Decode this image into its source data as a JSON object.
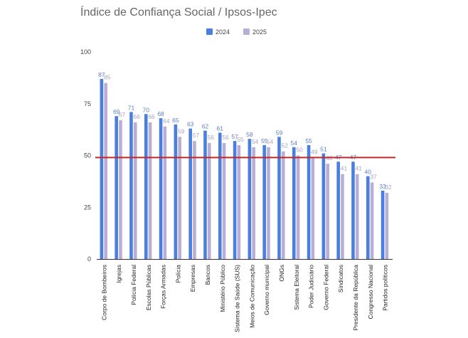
{
  "chart_data": {
    "type": "bar",
    "title": "Índice de Confiança Social / Ipsos-Ipec",
    "xlabel": "",
    "ylabel": "",
    "ylim": [
      0,
      100
    ],
    "yticks": [
      0,
      25,
      50,
      75,
      100
    ],
    "grid": false,
    "legend_position": "top-center",
    "reference_line": {
      "value": 49,
      "color": "#c0272d"
    },
    "categories": [
      "Corpo de Bombeiros",
      "Igrejas",
      "Polícia Federal",
      "Escolas Públicas",
      "Forças Armadas",
      "Polícia",
      "Empresas",
      "Bancos",
      "Ministério Público",
      "Sistema de Saúde (SUS)",
      "Meios de Comunicação",
      "Governo municipal",
      "ONGs",
      "Sistema Eleitoral",
      "Poder Judiciário",
      "Governo Federal",
      "Sindicatos",
      "Presidente da República",
      "Congresso Nacional",
      "Partidos políticos"
    ],
    "series": [
      {
        "name": "2024",
        "color": "#4a7fdf",
        "values": [
          87,
          69,
          71,
          70,
          68,
          65,
          63,
          62,
          61,
          57,
          58,
          55,
          59,
          54,
          55,
          51,
          47,
          47,
          40,
          33
        ]
      },
      {
        "name": "2025",
        "color": "#b8aed6",
        "values": [
          85,
          67,
          66,
          66,
          64,
          59,
          57,
          56,
          56,
          55,
          54,
          54,
          52,
          50,
          49,
          46,
          41,
          41,
          37,
          32
        ]
      }
    ]
  }
}
